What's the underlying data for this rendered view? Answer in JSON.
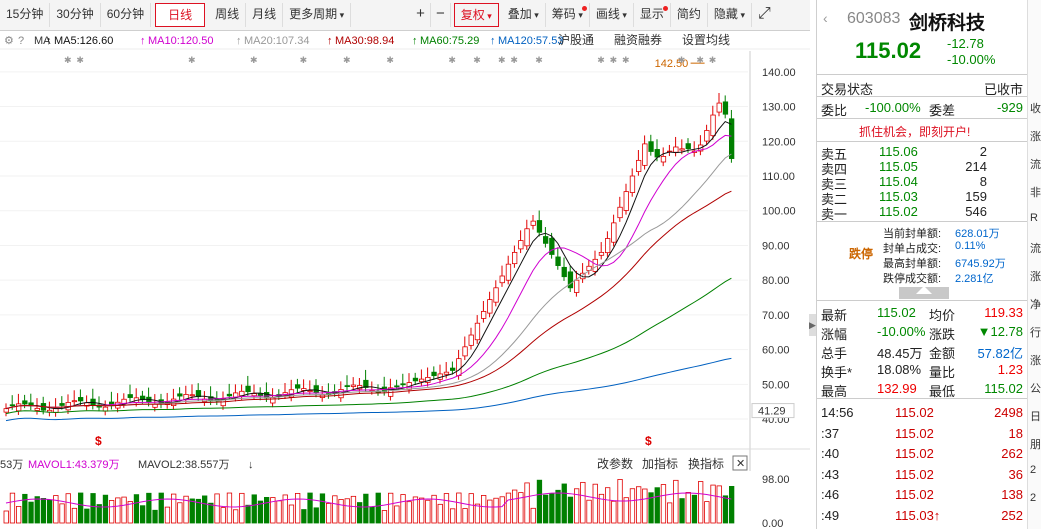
{
  "toolbar": {
    "periods": [
      "15分钟",
      "30分钟",
      "60分钟",
      "日线",
      "周线",
      "月线",
      "更多周期"
    ],
    "active": "日线",
    "buttons": [
      "+",
      "−",
      "复权",
      "叠加",
      "筹码",
      "画线",
      "显示",
      "简约",
      "隐藏"
    ],
    "expand_icon": "expand-icon"
  },
  "ma_legend": {
    "ma": "MA",
    "ma5": "MA5:126.60",
    "ma10": "MA10:120.50",
    "ma20": "MA20:107.34",
    "ma30": "MA30:98.94",
    "ma60": "MA60:75.29",
    "ma120": "MA120:57.53",
    "links": [
      "沪股通",
      "融资融券",
      "设置均线"
    ]
  },
  "colors": {
    "ma5": "#111111",
    "ma10": "#d000d0",
    "ma20": "#999999",
    "ma30": "#b00000",
    "ma60": "#008000",
    "ma120": "#0060c0",
    "up": "#e00000",
    "down": "#008000"
  },
  "price_axis": [
    "140.00",
    "130.00",
    "120.00",
    "110.00",
    "100.00",
    "90.00",
    "80.00",
    "70.00",
    "60.00",
    "50.00",
    "40.00"
  ],
  "price_marker": "41.29",
  "high_label": "142.50",
  "vol_legend": {
    "v0": "53万",
    "vol1": "MAVOL1:43.379万",
    "vol2": "MAVOL2:38.557万",
    "btn1": "改参数",
    "btn2": "加指标",
    "btn3": "换指标"
  },
  "vol_axis": [
    "98.00",
    "0.00"
  ],
  "stock": {
    "code": "603083",
    "name": "剑桥科技",
    "price": "115.02",
    "change": "-12.78",
    "pct": "-10.00%"
  },
  "status": {
    "label": "交易状态",
    "value": "已收市"
  },
  "weibi": {
    "l1": "委比",
    "v1": "-100.00%",
    "l2": "委差",
    "v2": "-929"
  },
  "promo": "抓住机会，即刻开户!",
  "asks": [
    {
      "label": "卖五",
      "price": "115.06",
      "vol": "2"
    },
    {
      "label": "卖四",
      "price": "115.05",
      "vol": "214"
    },
    {
      "label": "卖三",
      "price": "115.04",
      "vol": "8"
    },
    {
      "label": "卖二",
      "price": "115.03",
      "vol": "159"
    },
    {
      "label": "卖一",
      "price": "115.02",
      "vol": "546"
    }
  ],
  "limit": {
    "tag": "跌停",
    "rows": [
      {
        "label": "当前封单额:",
        "value": "628.01万"
      },
      {
        "label": "封单占成交:",
        "value": "0.11%"
      },
      {
        "label": "最高封单额:",
        "value": "6745.92万"
      },
      {
        "label": "跌停成交额:",
        "value": "2.281亿"
      }
    ]
  },
  "quote": [
    {
      "l1": "最新",
      "v1": "115.02",
      "l2": "均价",
      "v2": "119.33"
    },
    {
      "l1": "涨幅",
      "v1": "-10.00%",
      "l2": "涨跌",
      "v2": "▼12.78"
    },
    {
      "l1": "总手",
      "v1": "48.45万",
      "l2": "金额",
      "v2": "57.82亿"
    },
    {
      "l1": "换手*",
      "v1": "18.08%",
      "l2": "量比",
      "v2": "1.23"
    },
    {
      "l1": "最高",
      "v1": "132.99",
      "l2": "最低",
      "v2": "115.02"
    }
  ],
  "ticks": [
    {
      "t": "14:56",
      "p": "115.02",
      "v": "2498"
    },
    {
      "t": ":37",
      "p": "115.02",
      "v": "18"
    },
    {
      "t": ":40",
      "p": "115.02",
      "v": "262"
    },
    {
      "t": ":43",
      "p": "115.02",
      "v": "36"
    },
    {
      "t": ":46",
      "p": "115.02",
      "v": "138"
    },
    {
      "t": ":49",
      "p": "115.03↑",
      "v": "252"
    }
  ],
  "edge_chars": [
    "收",
    "涨",
    "流",
    "非",
    "R",
    "流",
    "涨",
    "净",
    "行",
    "涨",
    "公",
    "日",
    "朋",
    "2",
    "2"
  ]
}
